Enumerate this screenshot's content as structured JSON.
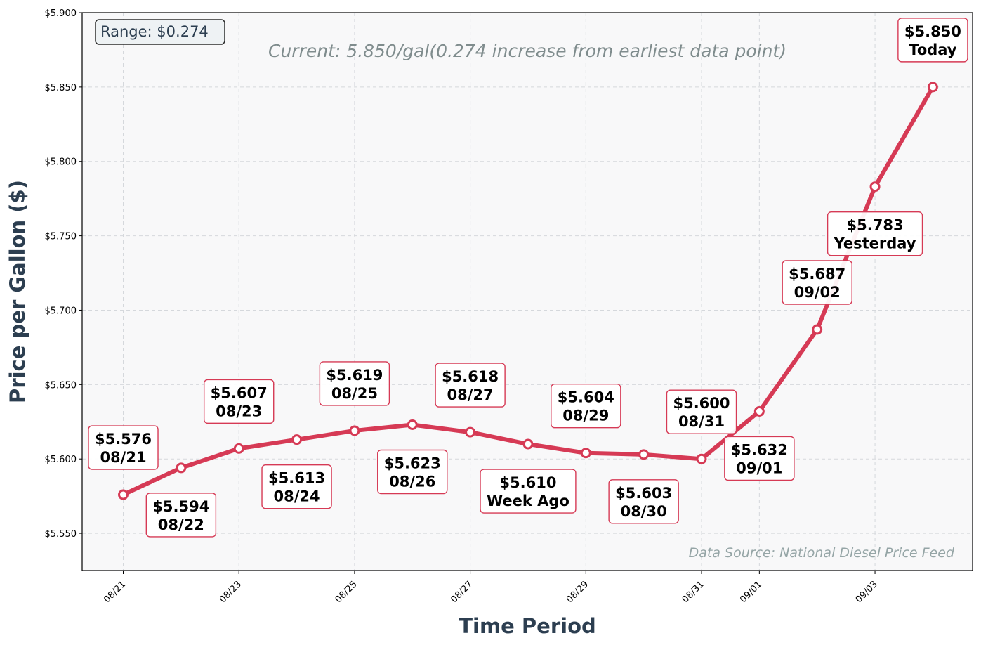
{
  "chart_data": {
    "type": "line",
    "xlabel": "Time Period",
    "ylabel": "Price per Gallon ($)",
    "ylim": [
      5.525,
      5.9
    ],
    "y_ticks": [
      5.55,
      5.6,
      5.65,
      5.7,
      5.75,
      5.8,
      5.85,
      5.9
    ],
    "y_tick_labels": [
      "$5.550",
      "$5.600",
      "$5.650",
      "$5.700",
      "$5.750",
      "$5.800",
      "$5.850",
      "$5.900"
    ],
    "x_tick_labels": [
      "08/21",
      "08/23",
      "08/25",
      "08/27",
      "08/29",
      "08/31",
      "09/01",
      "09/03"
    ],
    "x_tick_dates": [
      "08/21",
      "08/23",
      "08/25",
      "08/27",
      "08/29",
      "08/31",
      "09/01",
      "09/03"
    ],
    "grid": true,
    "line_color": "#d63a55",
    "range_box": "Range: $0.274",
    "subtitle": "Current: 5.850/gal(0.274 increase from earliest data point)",
    "source": "Data Source: National Diesel Price Feed",
    "points": [
      {
        "date": "08/21",
        "price": 5.576,
        "price_label": "$5.576",
        "tag": "08/21",
        "pos": "above"
      },
      {
        "date": "08/22",
        "price": 5.594,
        "price_label": "$5.594",
        "tag": "08/22",
        "pos": "below"
      },
      {
        "date": "08/23",
        "price": 5.607,
        "price_label": "$5.607",
        "tag": "08/23",
        "pos": "above"
      },
      {
        "date": "08/24",
        "price": 5.613,
        "price_label": "$5.613",
        "tag": "08/24",
        "pos": "below"
      },
      {
        "date": "08/25",
        "price": 5.619,
        "price_label": "$5.619",
        "tag": "08/25",
        "pos": "above"
      },
      {
        "date": "08/26",
        "price": 5.623,
        "price_label": "$5.623",
        "tag": "08/26",
        "pos": "below"
      },
      {
        "date": "08/27",
        "price": 5.618,
        "price_label": "$5.618",
        "tag": "08/27",
        "pos": "above"
      },
      {
        "date": "08/28",
        "price": 5.61,
        "price_label": "$5.610",
        "tag": "Week Ago",
        "pos": "below"
      },
      {
        "date": "08/29",
        "price": 5.604,
        "price_label": "$5.604",
        "tag": "08/29",
        "pos": "above"
      },
      {
        "date": "08/30",
        "price": 5.603,
        "price_label": "$5.603",
        "tag": "08/30",
        "pos": "below"
      },
      {
        "date": "08/31",
        "price": 5.6,
        "price_label": "$5.600",
        "tag": "08/31",
        "pos": "above"
      },
      {
        "date": "09/01",
        "price": 5.632,
        "price_label": "$5.632",
        "tag": "09/01",
        "pos": "below"
      },
      {
        "date": "09/02",
        "price": 5.687,
        "price_label": "$5.687",
        "tag": "09/02",
        "pos": "above"
      },
      {
        "date": "09/03",
        "price": 5.783,
        "price_label": "$5.783",
        "tag": "Yesterday",
        "pos": "below"
      },
      {
        "date": "09/04",
        "price": 5.85,
        "price_label": "$5.850",
        "tag": "Today",
        "pos": "above"
      }
    ]
  }
}
